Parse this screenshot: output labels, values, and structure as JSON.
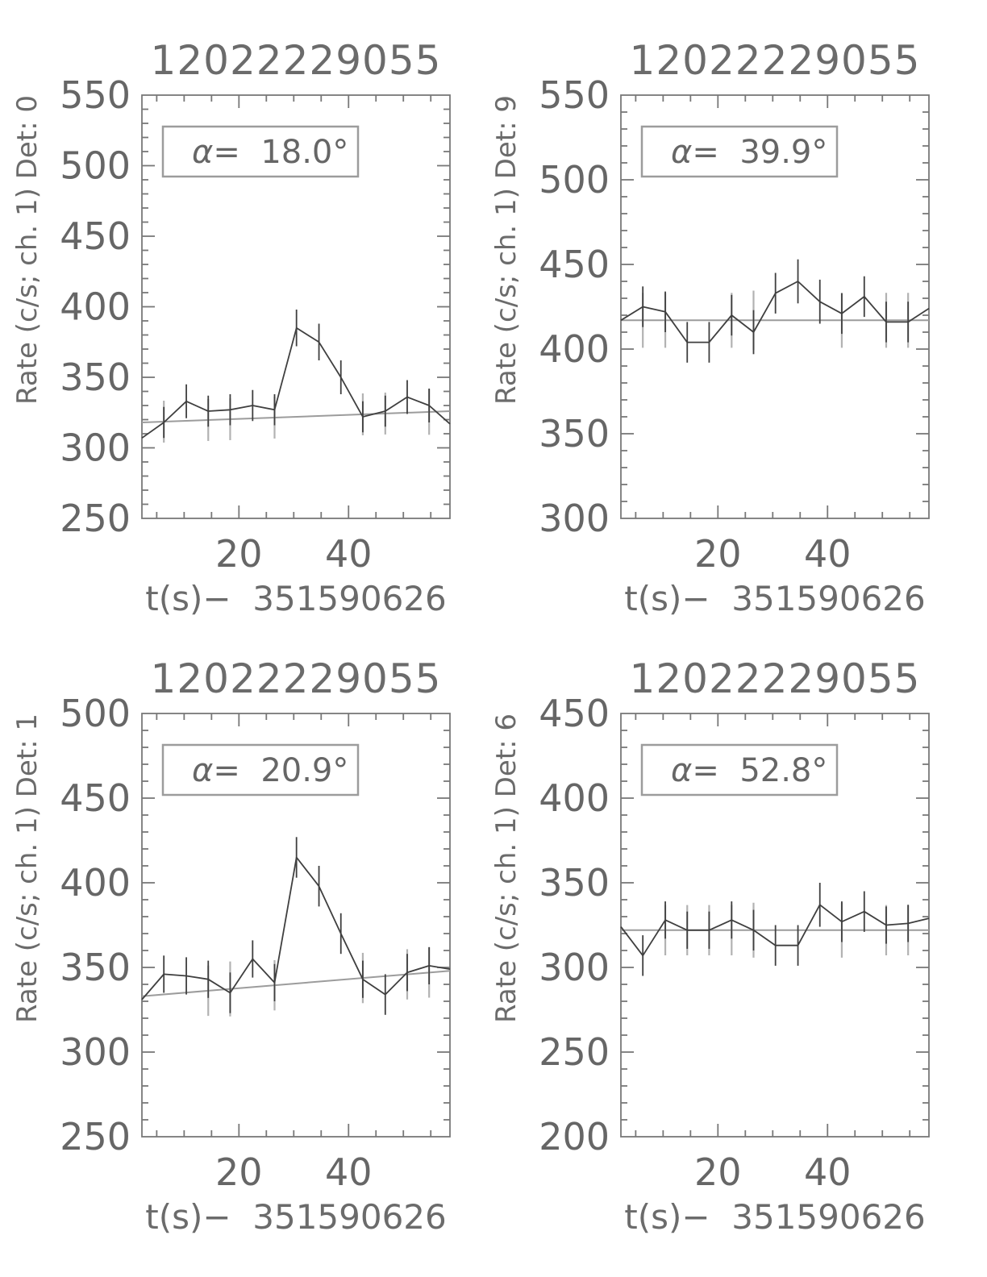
{
  "page": {
    "background": "#ffffff",
    "text_color": "#666666",
    "axis_color": "#787878",
    "data_line_color": "#3f3f3f",
    "fit_line_color": "#9c9c9c",
    "fit_errorbar_color": "#b2b2b2"
  },
  "chart_data": [
    {
      "type": "line",
      "title": "12022229055",
      "ylabel": "Rate (c/s; ch. 1) Det: 0",
      "xlabel": "t(s)−  351590626",
      "legend": {
        "symbol": "α",
        "rest": "=  18.0°"
      },
      "xlim": [
        2.3,
        58.5
      ],
      "ylim": [
        250,
        550
      ],
      "xtick_major": [
        20,
        40
      ],
      "xtick_major_labels": [
        "20",
        "40"
      ],
      "xtick_minor_step": 5,
      "ytick_major_step": 50,
      "ytick_minor_step": 10,
      "x": [
        6.3,
        10.4,
        14.4,
        18.4,
        22.5,
        26.5,
        30.5,
        34.6,
        38.6,
        42.6,
        46.7,
        50.7,
        54.7
      ],
      "y": [
        318,
        333,
        326,
        327,
        330,
        327,
        385,
        375,
        350,
        322,
        326,
        336,
        330
      ],
      "yerr": [
        11,
        12,
        11,
        11,
        11,
        11,
        13,
        13,
        12,
        11,
        11,
        12,
        12
      ],
      "edge_values": [
        307,
        317
      ],
      "baseline": [
        318,
        326
      ],
      "legend_position": "top-left",
      "grid": false
    },
    {
      "type": "line",
      "title": "12022229055",
      "ylabel": "Rate (c/s; ch. 1) Det: 9",
      "xlabel": "t(s)−  351590626",
      "legend": {
        "symbol": "α",
        "rest": "=  39.9°"
      },
      "xlim": [
        2.3,
        58.5
      ],
      "ylim": [
        300,
        550
      ],
      "xtick_major": [
        20,
        40
      ],
      "xtick_major_labels": [
        "20",
        "40"
      ],
      "xtick_minor_step": 5,
      "ytick_major_step": 50,
      "ytick_minor_step": 10,
      "x": [
        6.3,
        10.4,
        14.4,
        18.4,
        22.5,
        26.5,
        30.5,
        34.6,
        38.6,
        42.6,
        46.7,
        50.7,
        54.7
      ],
      "y": [
        425,
        422,
        404,
        404,
        420,
        410,
        433,
        440,
        428,
        421,
        431,
        416,
        416
      ],
      "yerr": [
        12,
        12,
        12,
        12,
        12,
        13,
        12,
        13,
        13,
        12,
        12,
        12,
        12
      ],
      "edge_values": [
        417,
        424
      ],
      "baseline": [
        417,
        417
      ],
      "legend_position": "top-left",
      "grid": false
    },
    {
      "type": "line",
      "title": "12022229055",
      "ylabel": "Rate (c/s; ch. 1) Det: 1",
      "xlabel": "t(s)−  351590626",
      "legend": {
        "symbol": "α",
        "rest": "=  20.9°"
      },
      "xlim": [
        2.3,
        58.5
      ],
      "ylim": [
        250,
        500
      ],
      "xtick_major": [
        20,
        40
      ],
      "xtick_major_labels": [
        "20",
        "40"
      ],
      "xtick_minor_step": 5,
      "ytick_major_step": 50,
      "ytick_minor_step": 10,
      "x": [
        6.3,
        10.4,
        14.4,
        18.4,
        22.5,
        26.5,
        30.5,
        34.6,
        38.6,
        42.6,
        46.7,
        50.7,
        54.7
      ],
      "y": [
        346,
        345,
        343,
        335,
        355,
        341,
        415,
        398,
        370,
        343,
        334,
        347,
        351
      ],
      "yerr": [
        11,
        11,
        11,
        12,
        11,
        11,
        12,
        12,
        12,
        11,
        12,
        11,
        11
      ],
      "edge_values": [
        331,
        349
      ],
      "baseline": [
        333,
        348
      ],
      "legend_position": "top-left",
      "grid": false
    },
    {
      "type": "line",
      "title": "12022229055",
      "ylabel": "Rate (c/s; ch. 1) Det: 6",
      "xlabel": "t(s)−  351590626",
      "legend": {
        "symbol": "α",
        "rest": "=  52.8°"
      },
      "xlim": [
        2.3,
        58.5
      ],
      "ylim": [
        200,
        450
      ],
      "xtick_major": [
        20,
        40
      ],
      "xtick_major_labels": [
        "20",
        "40"
      ],
      "xtick_minor_step": 5,
      "ytick_major_step": 50,
      "ytick_minor_step": 10,
      "x": [
        6.3,
        10.4,
        14.4,
        18.4,
        22.5,
        26.5,
        30.5,
        34.6,
        38.6,
        42.6,
        46.7,
        50.7,
        54.7
      ],
      "y": [
        307,
        328,
        322,
        322,
        328,
        322,
        313,
        313,
        337,
        327,
        333,
        325,
        326
      ],
      "yerr": [
        12,
        11,
        11,
        11,
        11,
        12,
        12,
        12,
        13,
        12,
        12,
        11,
        11
      ],
      "edge_values": [
        324,
        329
      ],
      "baseline": [
        322,
        322
      ],
      "legend_position": "top-left",
      "grid": false
    }
  ]
}
